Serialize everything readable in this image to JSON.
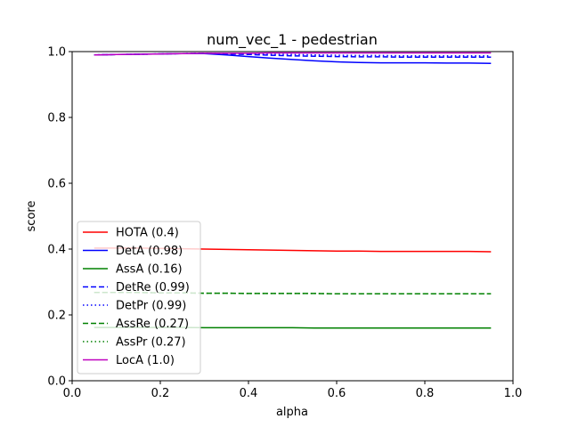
{
  "chart_data": {
    "type": "line",
    "title": "num_vec_1 - pedestrian",
    "xlabel": "alpha",
    "ylabel": "score",
    "xlim": [
      0.0,
      1.0
    ],
    "ylim": [
      0.0,
      1.0
    ],
    "xticks": [
      "0.0",
      "0.2",
      "0.4",
      "0.6",
      "0.8",
      "1.0"
    ],
    "yticks": [
      "0.0",
      "0.2",
      "0.4",
      "0.6",
      "0.8",
      "1.0"
    ],
    "grid": false,
    "legend_position": "lower-left",
    "x": [
      0.05,
      0.1,
      0.15,
      0.2,
      0.25,
      0.3,
      0.35,
      0.4,
      0.45,
      0.5,
      0.55,
      0.6,
      0.65,
      0.7,
      0.75,
      0.8,
      0.85,
      0.9,
      0.95
    ],
    "series": [
      {
        "name": "HOTA (0.4)",
        "color": "#ff0000",
        "style": "solid",
        "values": [
          0.403,
          0.403,
          0.403,
          0.402,
          0.401,
          0.4,
          0.399,
          0.398,
          0.397,
          0.396,
          0.395,
          0.394,
          0.394,
          0.393,
          0.393,
          0.393,
          0.393,
          0.393,
          0.392
        ]
      },
      {
        "name": "DetA (0.98)",
        "color": "#0000ff",
        "style": "solid",
        "values": [
          0.99,
          0.991,
          0.992,
          0.993,
          0.994,
          0.994,
          0.99,
          0.985,
          0.98,
          0.976,
          0.972,
          0.969,
          0.967,
          0.966,
          0.966,
          0.966,
          0.965,
          0.965,
          0.964
        ]
      },
      {
        "name": "AssA (0.16)",
        "color": "#008000",
        "style": "solid",
        "values": [
          0.162,
          0.162,
          0.162,
          0.162,
          0.162,
          0.161,
          0.161,
          0.161,
          0.161,
          0.161,
          0.16,
          0.16,
          0.16,
          0.16,
          0.16,
          0.16,
          0.16,
          0.16,
          0.16
        ]
      },
      {
        "name": "DetRe (0.99)",
        "color": "#0000ff",
        "style": "dashed",
        "values": [
          0.99,
          0.991,
          0.992,
          0.993,
          0.994,
          0.995,
          0.993,
          0.991,
          0.989,
          0.987,
          0.986,
          0.985,
          0.984,
          0.984,
          0.983,
          0.983,
          0.983,
          0.983,
          0.983
        ]
      },
      {
        "name": "DetPr (0.99)",
        "color": "#0000ff",
        "style": "dotted",
        "values": [
          0.99,
          0.991,
          0.992,
          0.993,
          0.994,
          0.995,
          0.994,
          0.993,
          0.992,
          0.991,
          0.99,
          0.989,
          0.988,
          0.988,
          0.987,
          0.987,
          0.987,
          0.987,
          0.987
        ]
      },
      {
        "name": "AssRe (0.27)",
        "color": "#008000",
        "style": "dashed",
        "values": [
          0.268,
          0.268,
          0.268,
          0.267,
          0.267,
          0.266,
          0.266,
          0.265,
          0.265,
          0.265,
          0.265,
          0.264,
          0.264,
          0.264,
          0.264,
          0.264,
          0.264,
          0.264,
          0.264
        ]
      },
      {
        "name": "AssPr (0.27)",
        "color": "#008000",
        "style": "dotted",
        "values": [
          0.268,
          0.268,
          0.268,
          0.267,
          0.267,
          0.266,
          0.266,
          0.265,
          0.265,
          0.265,
          0.265,
          0.264,
          0.264,
          0.264,
          0.264,
          0.264,
          0.264,
          0.264,
          0.264
        ]
      },
      {
        "name": "LocA (1.0)",
        "color": "#bf00bf",
        "style": "solid",
        "values": [
          0.99,
          0.991,
          0.992,
          0.993,
          0.994,
          0.995,
          0.995,
          0.995,
          0.996,
          0.996,
          0.996,
          0.996,
          0.996,
          0.996,
          0.996,
          0.996,
          0.996,
          0.996,
          0.996
        ]
      }
    ]
  }
}
